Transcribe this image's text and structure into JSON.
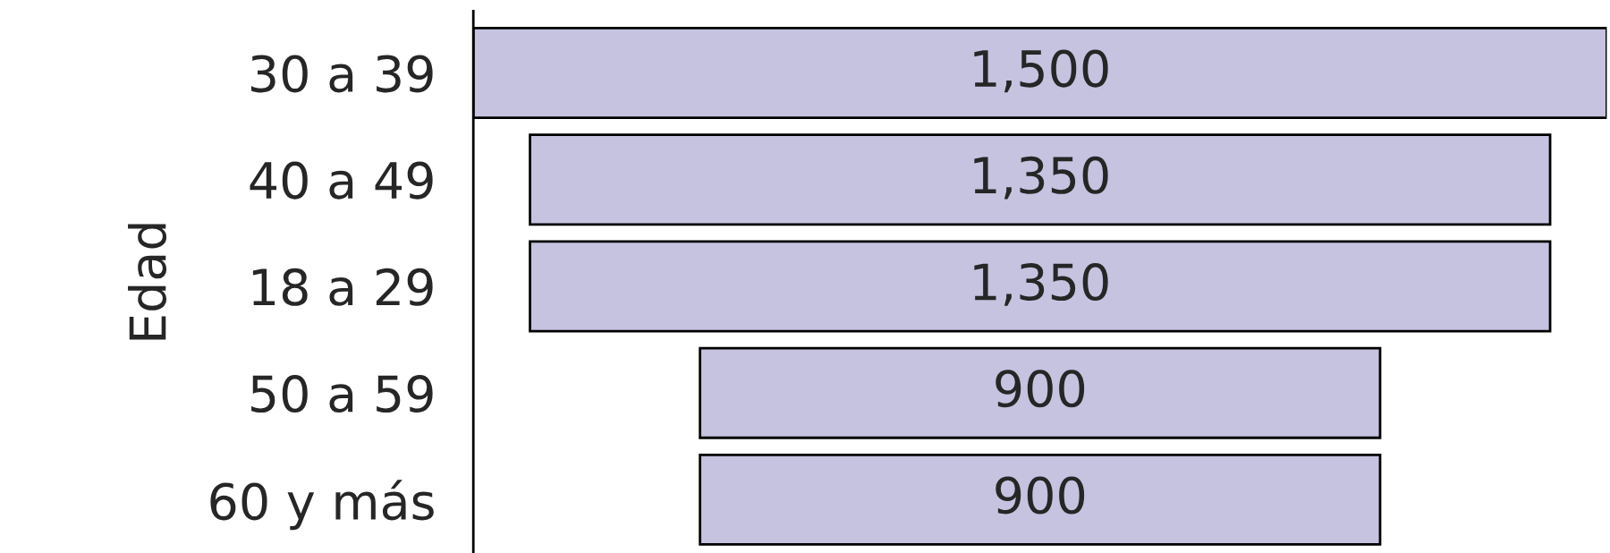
{
  "chart_data": {
    "type": "other",
    "ylabel": "Edad",
    "categories": [
      "30 a 39",
      "40 a 49",
      "18 a 29",
      "50 a 59",
      "60 y más"
    ],
    "values": [
      1500,
      1350,
      1350,
      900,
      900
    ],
    "color": "#c5c3e0",
    "value_labels": [
      "1,500",
      "1,350",
      "1,350",
      "900",
      "900"
    ]
  }
}
